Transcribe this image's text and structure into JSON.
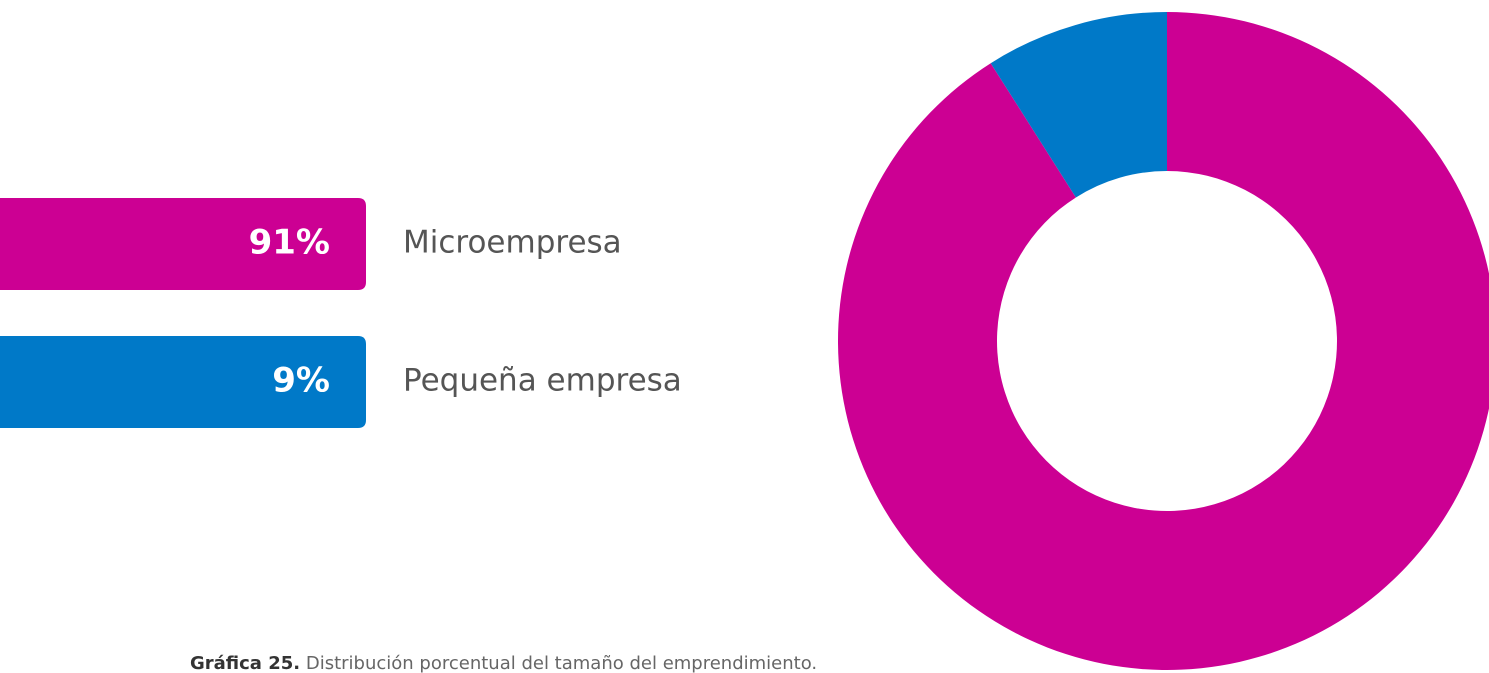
{
  "chart_data": {
    "type": "pie",
    "donut": true,
    "categories": [
      "Microempresa",
      "Pequeña empresa"
    ],
    "values": [
      91,
      9
    ],
    "value_labels": [
      "91%",
      "9%"
    ],
    "colors": [
      "#cc0093",
      "#0079c8"
    ],
    "caption_label": "Gráfica 25.",
    "caption": "Distribución porcentual del tamaño del emprendimiento."
  }
}
